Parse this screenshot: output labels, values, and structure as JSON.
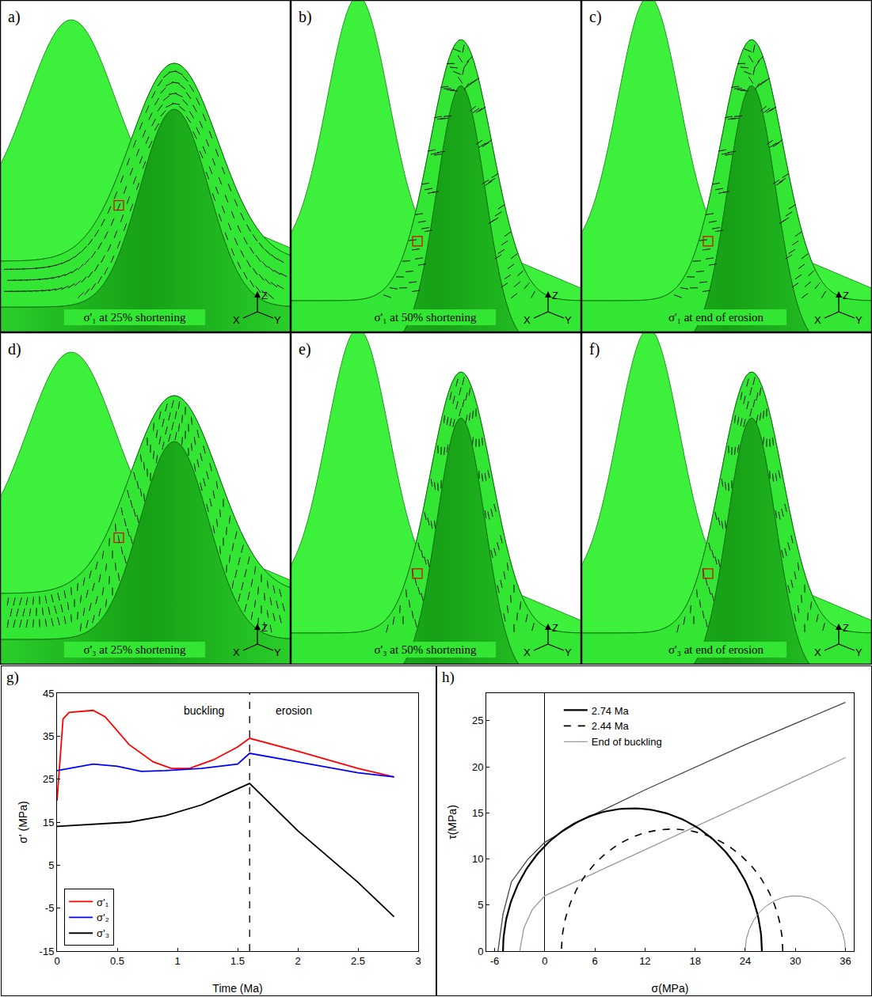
{
  "triad": [
    "X",
    "Y",
    "Z"
  ],
  "panels": [
    {
      "letter": "a)",
      "caption": "σ'₁ at 25% shortening"
    },
    {
      "letter": "b)",
      "caption": "σ'₁ at 50% shortening"
    },
    {
      "letter": "c)",
      "caption": "σ'₁ at end of erosion"
    },
    {
      "letter": "d)",
      "caption": "σ'₃ at 25% shortening"
    },
    {
      "letter": "e)",
      "caption": "σ'₃ at 50% shortening"
    },
    {
      "letter": "f)",
      "caption": "σ'₃ at end of erosion"
    }
  ],
  "chart_data": [
    {
      "type": "line",
      "letter": "g)",
      "x_label": "Time (Ma)",
      "y_label": "σ' (MPa)",
      "xlim": [
        0,
        3
      ],
      "xticks": [
        0,
        0.5,
        1,
        1.5,
        2,
        2.5,
        3
      ],
      "ylim": [
        -15,
        45
      ],
      "yticks": [
        -15,
        -5,
        5,
        15,
        25,
        35,
        45
      ],
      "grid": false,
      "legend": "lower left",
      "vertical_line": {
        "x": 1.6,
        "line_style": "dash"
      },
      "annotations": [
        {
          "text": "buckling",
          "x": 1.22,
          "y": 41
        },
        {
          "text": "erosion",
          "x": 1.97,
          "y": 41
        }
      ],
      "series": [
        {
          "name": "σ'₁",
          "color": "#ff0000",
          "x": [
            0,
            0.05,
            0.1,
            0.3,
            0.4,
            0.6,
            0.8,
            0.95,
            1.1,
            1.3,
            1.5,
            1.6,
            2.0,
            2.5,
            2.8
          ],
          "values": [
            20,
            39,
            40.5,
            41,
            39.5,
            33,
            29,
            27.5,
            27.5,
            29.5,
            32.5,
            34.5,
            31.5,
            27.5,
            25.5
          ]
        },
        {
          "name": "σ'₂",
          "color": "#0000ff",
          "x": [
            0,
            0.1,
            0.3,
            0.5,
            0.7,
            0.9,
            1.2,
            1.5,
            1.6,
            2.0,
            2.5,
            2.8
          ],
          "values": [
            27,
            27.5,
            28.5,
            28,
            26.8,
            27,
            27.5,
            28.5,
            31,
            29,
            26.5,
            25.5
          ]
        },
        {
          "name": "σ'₃",
          "color": "#000000",
          "x": [
            0,
            0.3,
            0.6,
            0.9,
            1.2,
            1.4,
            1.6,
            2.0,
            2.5,
            2.8
          ],
          "values": [
            14,
            14.5,
            15,
            16.5,
            19,
            21.5,
            24,
            13,
            1,
            -7
          ]
        }
      ]
    },
    {
      "type": "mohr",
      "letter": "h)",
      "x_label": "σ(MPa)",
      "y_label": "τ(MPa)",
      "xlim": [
        -7,
        37
      ],
      "xticks": [
        -6,
        0,
        6,
        12,
        18,
        24,
        30,
        36
      ],
      "ylim": [
        0,
        28
      ],
      "yticks": [
        0,
        5,
        10,
        15,
        20,
        25
      ],
      "grid": false,
      "legend": "upper left",
      "circles": [
        {
          "name": "2.74 Ma",
          "sigma3": -5,
          "sigma1": 26,
          "color": "#000000",
          "line_style": "solid"
        },
        {
          "name": "2.44 Ma",
          "sigma3": 2,
          "sigma1": 28.5,
          "color": "#000000",
          "line_style": "dash"
        },
        {
          "name": "End of buckling",
          "sigma3": 24,
          "sigma1": 36,
          "color": "#808080",
          "line_style": "solid"
        }
      ],
      "envelopes": [
        {
          "color": "#444444",
          "x": [
            -5.6,
            -5,
            -4,
            -2,
            0,
            4,
            12,
            24,
            36
          ],
          "values": [
            0,
            4,
            7.5,
            10,
            11.8,
            14,
            17.5,
            22.4,
            27
          ]
        },
        {
          "color": "#999999",
          "x": [
            -3,
            -2.5,
            -1.5,
            0,
            6,
            18,
            36
          ],
          "values": [
            0,
            2.5,
            4.5,
            6,
            8.5,
            13.5,
            21
          ]
        }
      ]
    }
  ]
}
